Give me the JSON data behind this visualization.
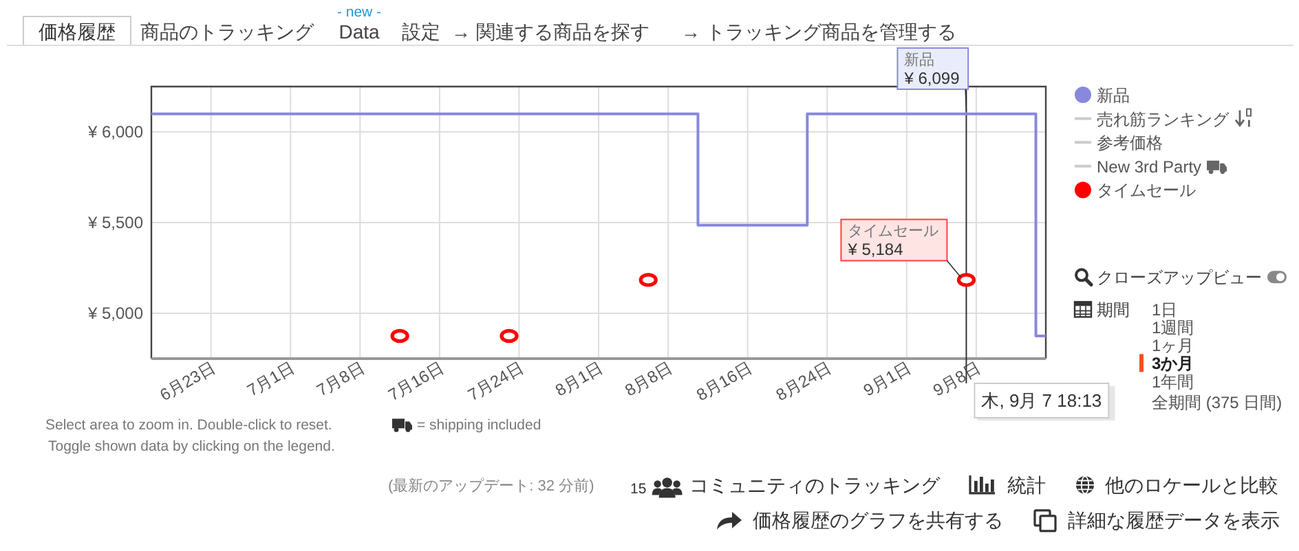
{
  "chart_data": {
    "type": "step",
    "title": "価格履歴",
    "xlim": [
      "--06-17",
      "--09-15"
    ],
    "xticks": [
      {
        "value": "--06-23",
        "label": "6月23日"
      },
      {
        "value": "--07-01",
        "label": "7月1日"
      },
      {
        "value": "--07-08",
        "label": "7月8日"
      },
      {
        "value": "--07-16",
        "label": "7月16日"
      },
      {
        "value": "--07-24",
        "label": "7月24日"
      },
      {
        "value": "--08-01",
        "label": "8月1日"
      },
      {
        "value": "--08-08",
        "label": "8月8日"
      },
      {
        "value": "--08-16",
        "label": "8月16日"
      },
      {
        "value": "--08-24",
        "label": "8月24日"
      },
      {
        "value": "--09-01",
        "label": "9月1日"
      },
      {
        "value": "--09-08",
        "label": "9月8日"
      }
    ],
    "ylim": [
      4750,
      6250
    ],
    "yticks": [
      {
        "value": 5000,
        "label": "¥ 5,000"
      },
      {
        "value": 5500,
        "label": "¥ 5,500"
      },
      {
        "value": 6000,
        "label": "¥ 6,000"
      }
    ],
    "grid": true,
    "legend": "right",
    "ref_lines": [
      {
        "axis": "x",
        "value": "--09-07",
        "label": "木, 9月 7 18:13",
        "color": "#333333"
      }
    ],
    "series": [
      {
        "name": "新品",
        "color": "#8888dd",
        "x": [
          "--06-17",
          "--08-11",
          "--08-22",
          "--09-14",
          "--09-15"
        ],
        "values": [
          6099,
          5486,
          6099,
          4875,
          4875
        ]
      },
      {
        "name": "売れ筋ランキング",
        "color": "#cccccc"
      },
      {
        "name": "参考価格",
        "color": "#cccccc"
      },
      {
        "name": "New 3rd Party",
        "color": "#cccccc"
      },
      {
        "name": "タイムセール",
        "type": "scatter",
        "marker": "circle",
        "color": "#ff0000",
        "x": [
          "--07-12",
          "--07-23",
          "--08-06",
          "--09-07"
        ],
        "values": [
          4875,
          4875,
          5184,
          5184
        ]
      }
    ],
    "annotations": [
      "商品のトラッキング",
      "- new -",
      "Data",
      "設定",
      "→ 関連する商品を探す",
      "→ トラッキング商品を管理する",
      {
        "text": "新品\n¥ 6,099",
        "x": "--09-07",
        "y": 6099
      },
      {
        "text": "タイムセール\n¥ 5,184",
        "x": "--09-07",
        "y": 5184
      },
      "クローズアップビュー",
      "期間",
      "1日",
      "1週間",
      "1ヶ月",
      "3か月",
      "1年間",
      "全期間 (375 日間)",
      "Select area to zoom in. Double-click to reset.",
      "= shipping included",
      "Toggle shown data by clicking on the legend.",
      "(最新のアップデート: 32 分前)",
      "15",
      "コミュニティのトラッキング",
      "統計",
      "他のロケールと比較",
      "価格履歴のグラフを共有する",
      "詳細な履歴データを表示"
    ]
  }
}
